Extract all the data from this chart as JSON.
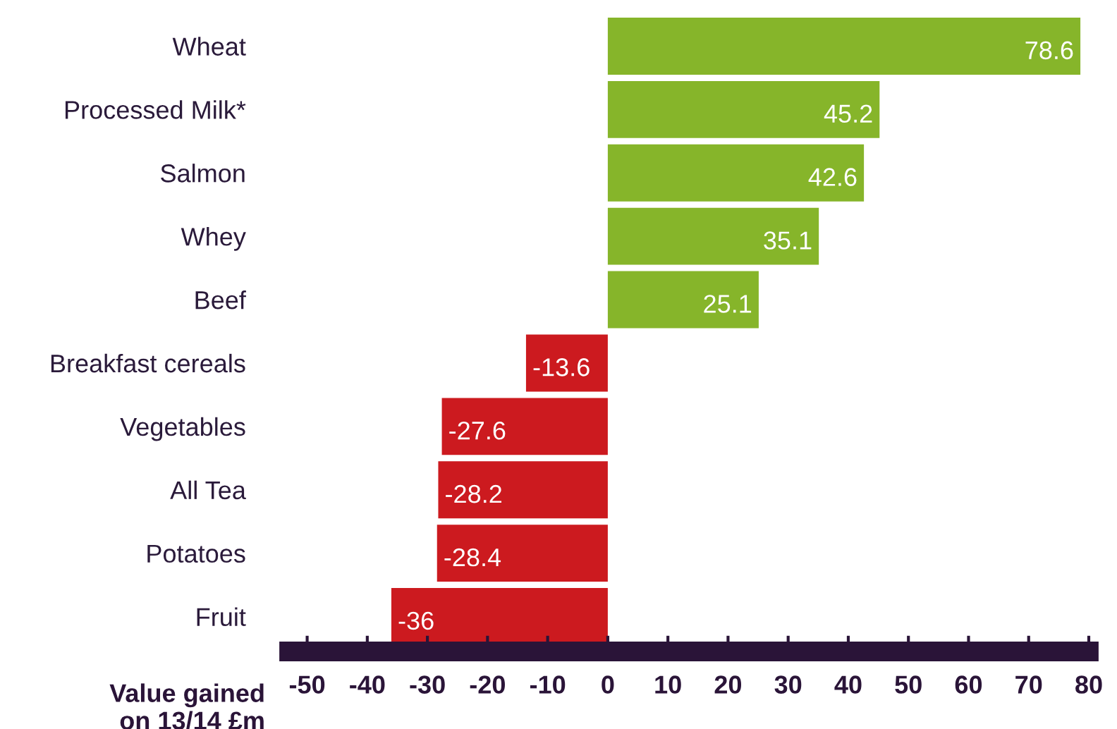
{
  "chart_data": {
    "type": "bar",
    "orientation": "horizontal",
    "categories": [
      "Wheat",
      "Processed Milk*",
      "Salmon",
      "Whey",
      "Beef",
      "Breakfast cereals",
      "Vegetables",
      "All Tea",
      "Potatoes",
      "Fruit"
    ],
    "values": [
      78.6,
      45.2,
      42.6,
      35.1,
      25.1,
      -13.6,
      -27.6,
      -28.2,
      -28.4,
      -36
    ],
    "colors": [
      "#86b52a",
      "#86b52a",
      "#86b52a",
      "#86b52a",
      "#86b52a",
      "#cc1a1f",
      "#cc1a1f",
      "#cc1a1f",
      "#cc1a1f",
      "#cc1a1f"
    ],
    "xlabel": "Value gained\non 13/14 £m",
    "xlim": [
      -53,
      80
    ],
    "xticks": [
      -50,
      -40,
      -30,
      -20,
      -10,
      0,
      10,
      20,
      30,
      40,
      50,
      60,
      70,
      80
    ],
    "data_labels": true,
    "grid": false,
    "legend": false
  }
}
